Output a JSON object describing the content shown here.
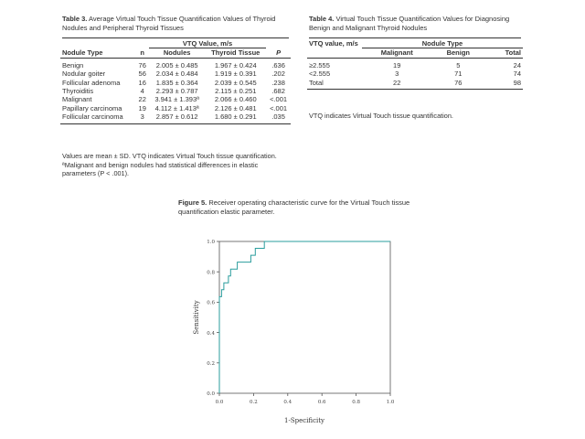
{
  "table3": {
    "label": "Table 3.",
    "caption": "Average Virtual Touch Tissue Quantification Values of Thyroid Nodules and Peripheral Thyroid Tissues",
    "group_header": "VTQ Value, m/s",
    "columns": [
      "Nodule Type",
      "n",
      "Nodules",
      "Thyroid Tissue",
      "P"
    ],
    "rows": [
      {
        "type": "Benign",
        "n": "76",
        "nodules": "2.005 ± 0.485",
        "tissue": "1.967 ± 0.424",
        "p": ".636"
      },
      {
        "type": "Nodular goiter",
        "n": "56",
        "nodules": "2.034 ± 0.484",
        "tissue": "1.919 ± 0.391",
        "p": ".202"
      },
      {
        "type": "Follicular adenoma",
        "n": "16",
        "nodules": "1.835 ± 0.364",
        "tissue": "2.039 ± 0.545",
        "p": ".238"
      },
      {
        "type": "Thyroiditis",
        "n": "4",
        "nodules": "2.293 ± 0.787",
        "tissue": "2.115 ± 0.251",
        "p": ".682"
      },
      {
        "type": "Malignant",
        "n": "22",
        "nodules": "3.941 ± 1.393ª",
        "tissue": "2.066 ± 0.460",
        "p": "<.001"
      },
      {
        "type": "Papillary carcinoma",
        "n": "19",
        "nodules": "4.112 ± 1.413ª",
        "tissue": "2.126 ± 0.481",
        "p": "<.001"
      },
      {
        "type": "Follicular carcinoma",
        "n": "3",
        "nodules": "2.857 ± 0.612",
        "tissue": "1.680 ± 0.291",
        "p": ".035"
      }
    ],
    "footnote1": "Values are mean ± SD. VTQ indicates Virtual Touch tissue quantification.",
    "footnote2": "ªMalignant and benign nodules had statistical differences in elastic parameters (P < .001)."
  },
  "table4": {
    "label": "Table 4.",
    "caption": "Virtual Touch Tissue Quantification Values for Diagnosing Benign and Malignant Thyroid Nodules",
    "header_col1": "VTQ value, m/s",
    "group_header": "Nodule Type",
    "columns": [
      "Malignant",
      "Benign",
      "Total"
    ],
    "rows": [
      {
        "label": "≥2.555",
        "malignant": "19",
        "benign": "5",
        "total": "24"
      },
      {
        "label": "<2.555",
        "malignant": "3",
        "benign": "71",
        "total": "74"
      },
      {
        "label": "Total",
        "malignant": "22",
        "benign": "76",
        "total": "98"
      }
    ],
    "footnote": "VTQ indicates Virtual Touch tissue quantification."
  },
  "figure5": {
    "label": "Figure 5.",
    "caption": "Receiver operating characteristic curve for the Virtual Touch tissue quantification elastic parameter."
  },
  "chart_data": {
    "type": "line",
    "title": "",
    "xlabel": "1-Specificity",
    "ylabel": "Sensitivity",
    "xlim": [
      0,
      1
    ],
    "ylim": [
      0,
      1
    ],
    "xticks": [
      "0.0",
      "0.2",
      "0.4",
      "0.6",
      "0.8",
      "1.0"
    ],
    "yticks": [
      "0.0",
      "0.2",
      "0.4",
      "0.6",
      "0.8",
      "1.0"
    ],
    "grid": false,
    "line_color": "#2a9d9d",
    "series": [
      {
        "x": [
          0,
          0,
          0.013,
          0.013,
          0.026,
          0.026,
          0.053,
          0.053,
          0.066,
          0.066,
          0.105,
          0.105,
          0.184,
          0.184,
          0.21,
          0.21,
          0.237,
          0.237,
          0.263,
          0.263,
          1.0
        ],
        "y": [
          0,
          0.636,
          0.636,
          0.682,
          0.682,
          0.727,
          0.727,
          0.773,
          0.773,
          0.818,
          0.818,
          0.864,
          0.864,
          0.909,
          0.909,
          0.955,
          0.955,
          0.955,
          0.955,
          1.0,
          1.0
        ]
      }
    ]
  }
}
